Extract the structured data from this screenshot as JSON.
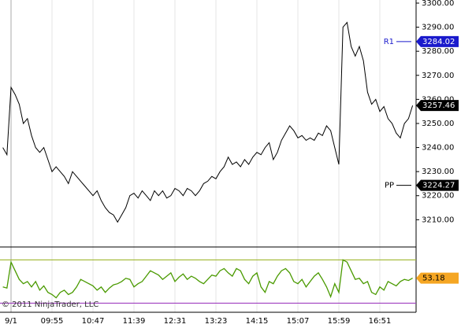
{
  "chart_data": [
    {
      "type": "line",
      "color": "#000000",
      "categories": [
        null,
        null,
        "9/1",
        null,
        null,
        null,
        null,
        null,
        null,
        null,
        null,
        null,
        "09:55",
        null,
        null,
        null,
        null,
        null,
        null,
        null,
        null,
        null,
        "10:47",
        null,
        null,
        null,
        null,
        null,
        null,
        null,
        null,
        null,
        "11:39",
        null,
        null,
        null,
        null,
        null,
        null,
        null,
        null,
        null,
        "12:31",
        null,
        null,
        null,
        null,
        null,
        null,
        null,
        null,
        null,
        "13:23",
        null,
        null,
        null,
        null,
        null,
        null,
        null,
        null,
        null,
        "14:15",
        null,
        null,
        null,
        null,
        null,
        null,
        null,
        null,
        null,
        "15:07",
        null,
        null,
        null,
        null,
        null,
        null,
        null,
        null,
        null,
        "15:59",
        null,
        null,
        null,
        null,
        null,
        null,
        null,
        null,
        null,
        "16:51",
        null,
        null,
        null,
        null,
        null,
        null,
        null,
        null
      ],
      "values": [
        3240,
        3237,
        3265,
        3262,
        3258,
        3250,
        3252,
        3245,
        3240,
        3238,
        3240,
        3235,
        3230,
        3232,
        3230,
        3228,
        3225,
        3230,
        3228,
        3226,
        3224,
        3222,
        3220,
        3222,
        3218,
        3215,
        3213,
        3212,
        3209,
        3212,
        3215,
        3220,
        3221,
        3219,
        3222,
        3220,
        3218,
        3222,
        3220,
        3222,
        3219,
        3220,
        3223,
        3222,
        3220,
        3223,
        3222,
        3220,
        3222,
        3225,
        3226,
        3228,
        3227,
        3230,
        3232,
        3236,
        3233,
        3234,
        3232,
        3235,
        3233,
        3236,
        3238,
        3237,
        3240,
        3242,
        3235,
        3238,
        3243,
        3246,
        3249,
        3247,
        3244,
        3245,
        3243,
        3244,
        3243,
        3246,
        3245,
        3249,
        3247,
        3240,
        3233,
        3290,
        3292,
        3282,
        3278,
        3282,
        3276,
        3263,
        3258,
        3260,
        3255,
        3257,
        3252,
        3250,
        3246,
        3244,
        3250,
        3252,
        3257.46
      ],
      "ylim": [
        3199,
        3301.3
      ],
      "yticks": [
        {
          "value": 3210,
          "label": "3210.00"
        },
        {
          "value": 3220,
          "label": "3220.00"
        },
        {
          "value": 3230,
          "label": "3230.00"
        },
        {
          "value": 3240,
          "label": "3240.00"
        },
        {
          "value": 3250,
          "label": "3250.00"
        },
        {
          "value": 3260,
          "label": "3260.00"
        },
        {
          "value": 3270,
          "label": "3270.00"
        },
        {
          "value": 3280,
          "label": "3280.00"
        },
        {
          "value": 3290,
          "label": "3290.00"
        },
        {
          "value": 3300,
          "label": "3300.00"
        }
      ],
      "levels": [
        {
          "label": "R1",
          "value": 3284.02,
          "color": "#1a1acc"
        },
        {
          "label": "PP",
          "value": 3224.27,
          "color": "#000000"
        }
      ],
      "grid": true
    },
    {
      "type": "line",
      "color": "#4a9a00",
      "values": [
        45,
        44,
        68,
        60,
        52,
        48,
        50,
        45,
        50,
        42,
        46,
        40,
        38,
        35,
        40,
        42,
        38,
        40,
        45,
        52,
        50,
        48,
        46,
        42,
        45,
        40,
        44,
        47,
        48,
        50,
        53,
        52,
        45,
        48,
        50,
        55,
        60,
        58,
        56,
        52,
        55,
        58,
        50,
        54,
        57,
        52,
        55,
        53,
        50,
        48,
        52,
        56,
        55,
        60,
        62,
        58,
        55,
        62,
        60,
        52,
        48,
        55,
        58,
        45,
        40,
        50,
        48,
        55,
        60,
        62,
        58,
        50,
        48,
        52,
        45,
        50,
        55,
        58,
        52,
        45,
        36,
        48,
        40,
        70,
        68,
        60,
        52,
        53,
        48,
        50,
        40,
        38,
        45,
        42,
        50,
        48,
        46,
        50,
        52,
        51,
        53.18
      ],
      "ylim": [
        21.6,
        80.5
      ],
      "hlines": [
        {
          "value": 70,
          "color": "#a0b830"
        },
        {
          "value": 30,
          "color": "#a040c0"
        }
      ],
      "watermark": "© 2011 NinjaTrader, LLC"
    }
  ]
}
